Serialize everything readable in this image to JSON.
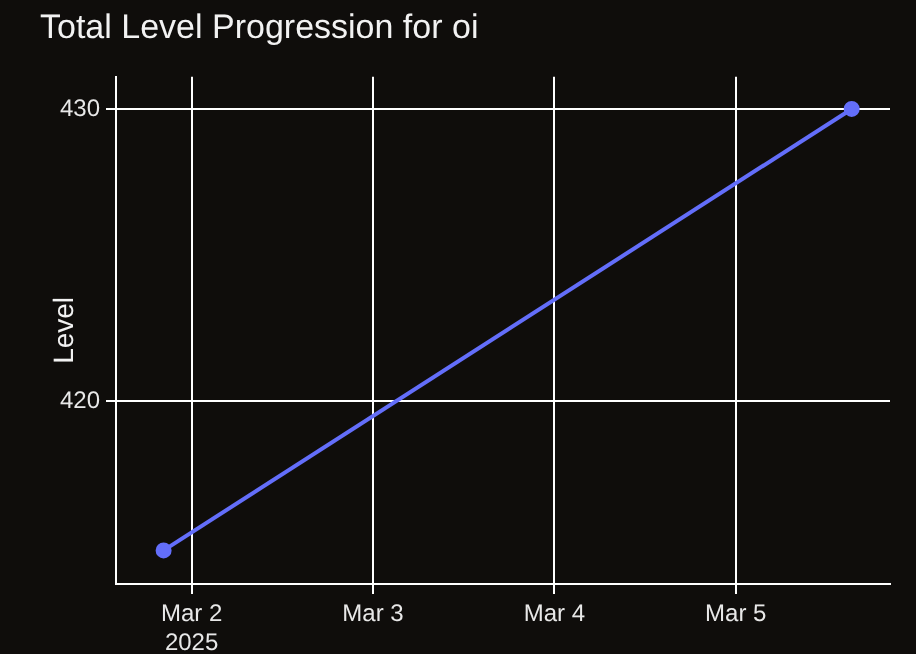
{
  "chart_data": {
    "type": "line",
    "title": "Total Level Progression for oi",
    "ylabel": "Level",
    "x": [
      "2025-03-01T20:18",
      "2025-03-05T15:20"
    ],
    "series": [
      {
        "color": "#636efa",
        "values": [
          414.9,
          430
        ]
      }
    ],
    "xlim": [
      "2025-03-01T14:00",
      "2025-03-05T20:24"
    ],
    "xticks": [
      {
        "value": "2025-03-02",
        "label": "Mar 2\n2025"
      },
      {
        "value": "2025-03-03",
        "label": "Mar 3"
      },
      {
        "value": "2025-03-04",
        "label": "Mar 4"
      },
      {
        "value": "2025-03-05",
        "label": "Mar 5"
      }
    ],
    "ylim": [
      413.75,
      431.1
    ],
    "yticks": [
      420,
      430
    ],
    "grid": true,
    "legend": false,
    "marker": "circle",
    "line_style": "solid"
  }
}
